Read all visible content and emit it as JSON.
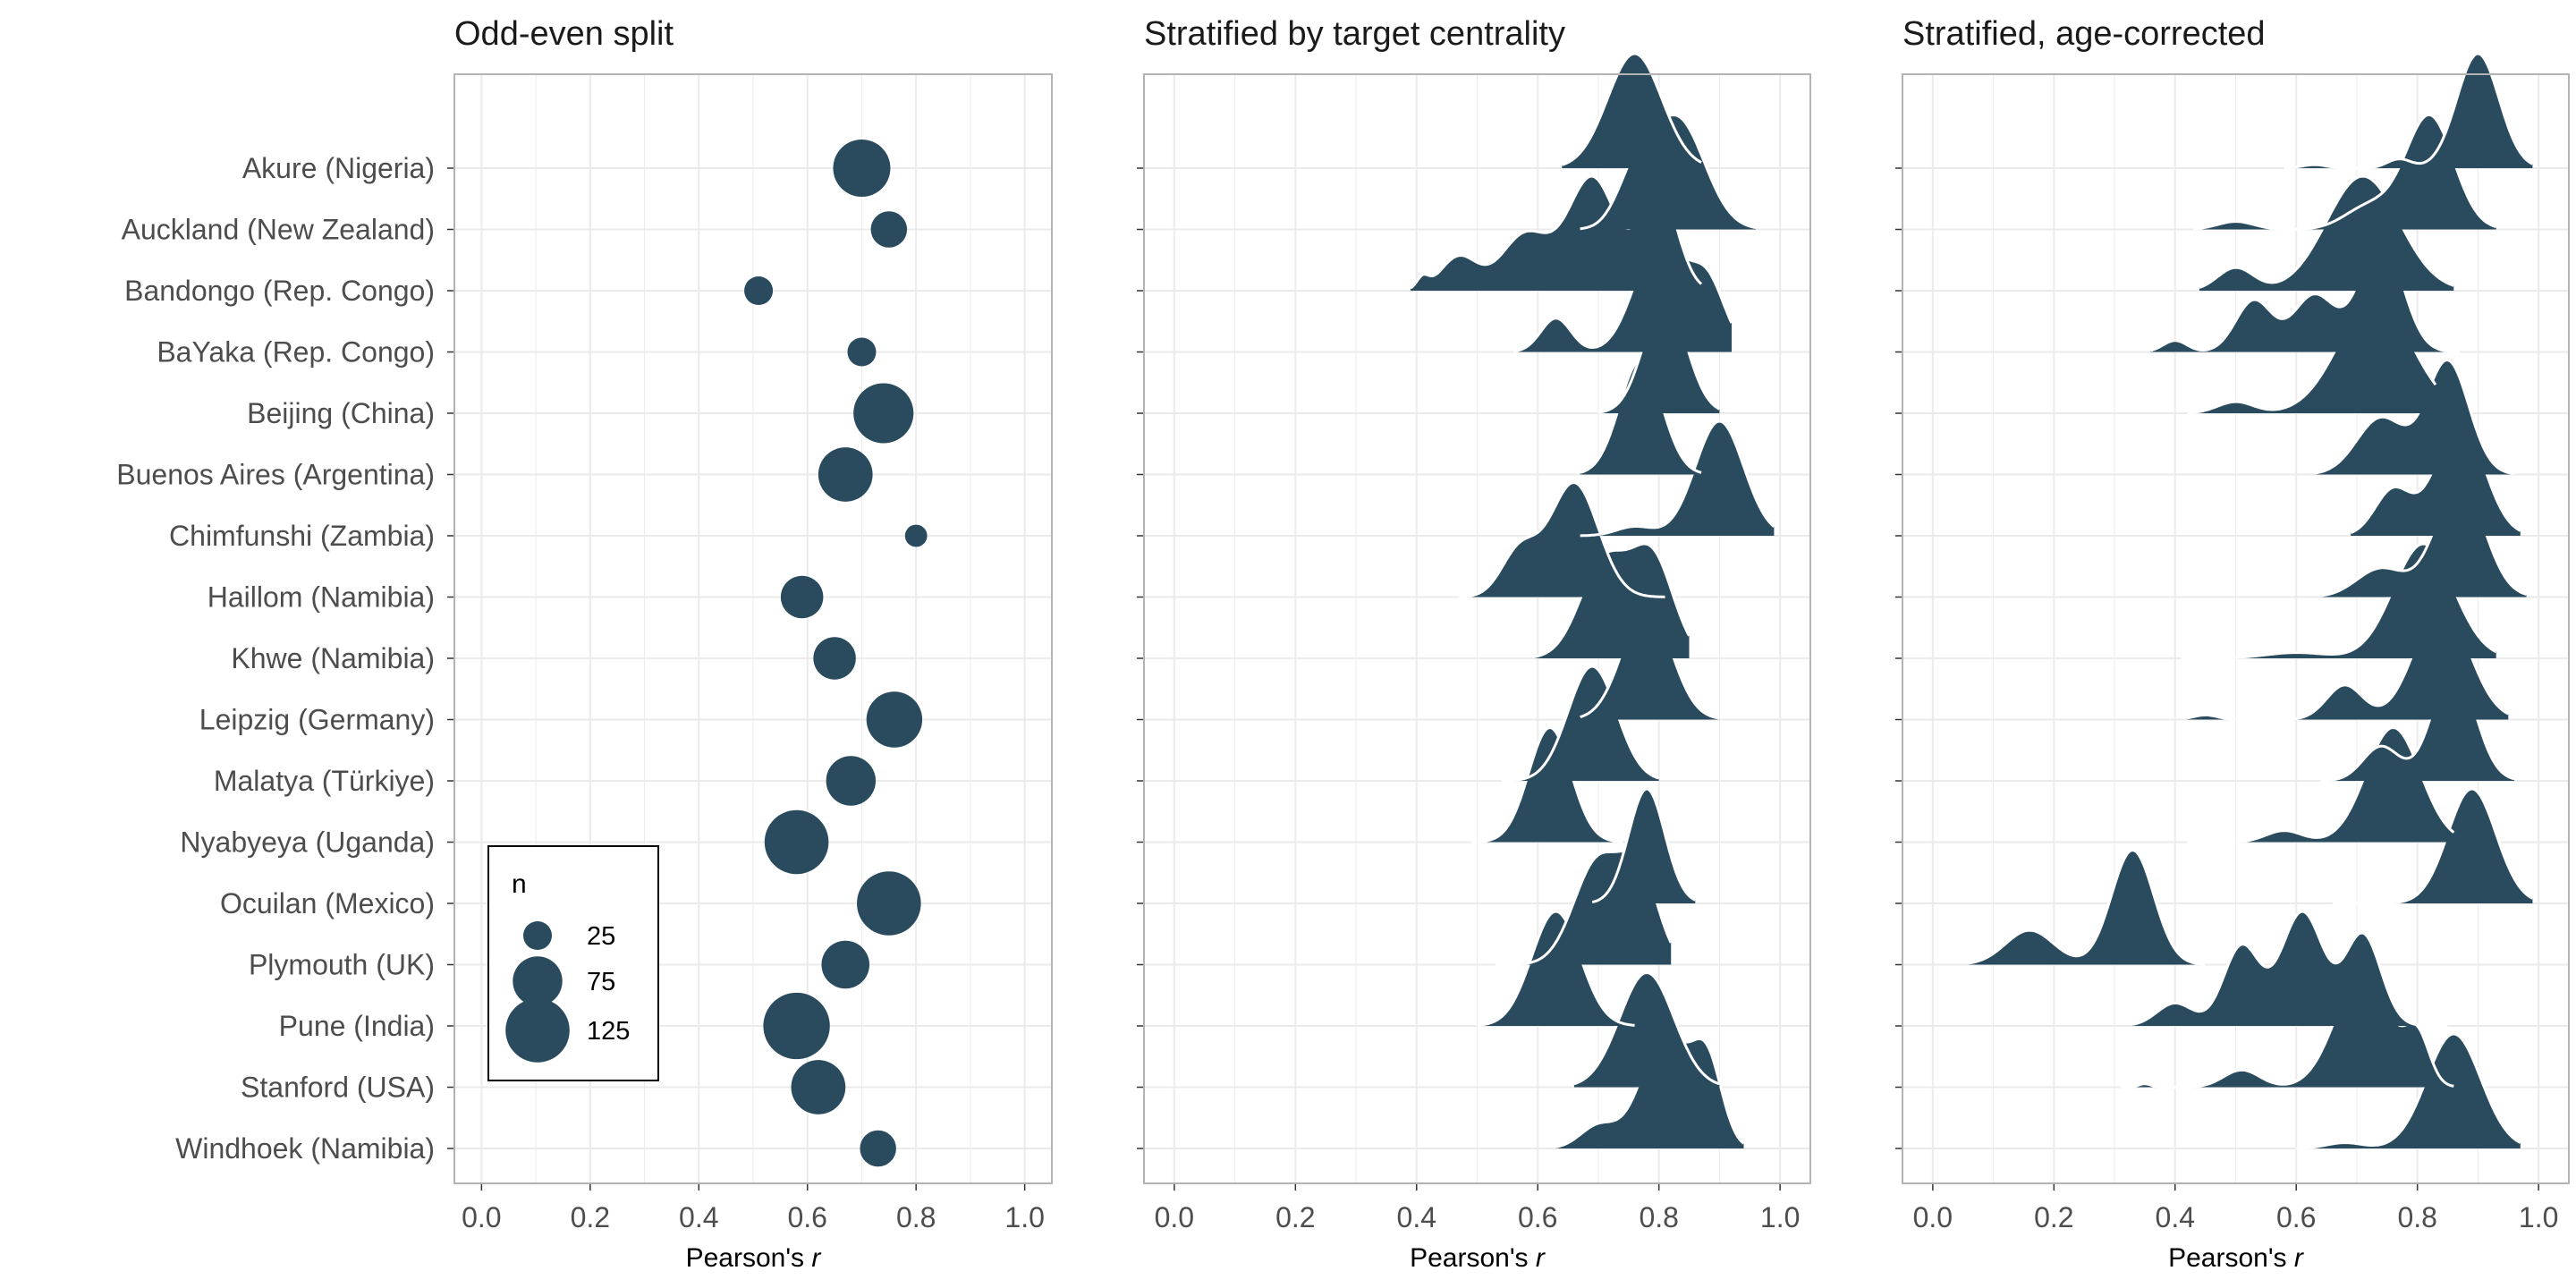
{
  "chart_data": [
    {
      "type": "scatter",
      "title": "Odd-even split",
      "xlabel": "Pearson's r",
      "xlim": [
        -0.05,
        1.05
      ],
      "xticks": [
        0.0,
        0.2,
        0.4,
        0.6,
        0.8,
        1.0
      ],
      "xtick_labels": [
        "0.0",
        "0.2",
        "0.4",
        "0.6",
        "0.8",
        "1.0"
      ],
      "grid": true,
      "categories": [
        "Akure (Nigeria)",
        "Auckland (New Zealand)",
        "Bandongo (Rep. Congo)",
        "BaYaka (Rep. Congo)",
        "Beijing (China)",
        "Buenos Aires (Argentina)",
        "Chimfunshi (Zambia)",
        "Haillom (Namibia)",
        "Khwe (Namibia)",
        "Leipzig (Germany)",
        "Malatya (Türkiye)",
        "Nyabyeya (Uganda)",
        "Ocuilan (Mexico)",
        "Plymouth (UK)",
        "Pune (India)",
        "Stanford (USA)",
        "Windhoek (Namibia)"
      ],
      "points": [
        {
          "r": 0.7,
          "n": 100
        },
        {
          "r": 0.75,
          "n": 40
        },
        {
          "r": 0.51,
          "n": 25
        },
        {
          "r": 0.7,
          "n": 25
        },
        {
          "r": 0.74,
          "n": 110
        },
        {
          "r": 0.67,
          "n": 90
        },
        {
          "r": 0.8,
          "n": 15
        },
        {
          "r": 0.59,
          "n": 55
        },
        {
          "r": 0.65,
          "n": 55
        },
        {
          "r": 0.76,
          "n": 95
        },
        {
          "r": 0.68,
          "n": 75
        },
        {
          "r": 0.58,
          "n": 125
        },
        {
          "r": 0.75,
          "n": 125
        },
        {
          "r": 0.67,
          "n": 70
        },
        {
          "r": 0.58,
          "n": 135
        },
        {
          "r": 0.62,
          "n": 90
        },
        {
          "r": 0.73,
          "n": 40
        }
      ],
      "legend": {
        "title": "n",
        "entries": [
          {
            "label": "25",
            "n": 25
          },
          {
            "label": "75",
            "n": 75
          },
          {
            "label": "125",
            "n": 125
          }
        ],
        "placement": "bottom-left"
      },
      "color": "#2a4a5e"
    },
    {
      "type": "area",
      "title": "Stratified by target centrality",
      "xlabel": "Pearson's r",
      "xlim": [
        -0.05,
        1.05
      ],
      "xticks": [
        0.0,
        0.2,
        0.4,
        0.6,
        0.8,
        1.0
      ],
      "xtick_labels": [
        "0.0",
        "0.2",
        "0.4",
        "0.6",
        "0.8",
        "1.0"
      ],
      "grid": true,
      "series": [
        {
          "components": [
            [
              0.76,
              0.045,
              1.0
            ]
          ],
          "range": [
            0.64,
            0.87
          ]
        },
        {
          "components": [
            [
              0.83,
              0.045,
              1.0
            ],
            [
              0.76,
              0.03,
              0.4
            ]
          ],
          "range": [
            0.67,
            0.96
          ]
        },
        {
          "components": [
            [
              0.69,
              0.04,
              1.0
            ],
            [
              0.8,
              0.03,
              0.9
            ],
            [
              0.58,
              0.04,
              0.5
            ],
            [
              0.47,
              0.03,
              0.3
            ],
            [
              0.41,
              0.01,
              0.1
            ]
          ],
          "range": [
            0.39,
            0.87
          ]
        },
        {
          "components": [
            [
              0.8,
              0.04,
              1.0
            ],
            [
              0.88,
              0.03,
              0.6
            ],
            [
              0.63,
              0.025,
              0.3
            ]
          ],
          "range": [
            0.56,
            0.92
          ]
        },
        {
          "components": [
            [
              0.81,
              0.035,
              1.0
            ]
          ],
          "range": [
            0.7,
            0.9
          ]
        },
        {
          "components": [
            [
              0.77,
              0.035,
              1.0
            ]
          ],
          "range": [
            0.67,
            0.87
          ]
        },
        {
          "components": [
            [
              0.9,
              0.04,
              1.0
            ],
            [
              0.76,
              0.03,
              0.08
            ]
          ],
          "range": [
            0.67,
            0.99
          ]
        },
        {
          "components": [
            [
              0.66,
              0.04,
              1.0
            ],
            [
              0.57,
              0.03,
              0.4
            ]
          ],
          "range": [
            0.47,
            0.81
          ]
        },
        {
          "components": [
            [
              0.71,
              0.04,
              1.0
            ],
            [
              0.79,
              0.035,
              1.0
            ]
          ],
          "range": [
            0.59,
            0.85
          ]
        },
        {
          "components": [
            [
              0.78,
              0.04,
              1.0
            ]
          ],
          "range": [
            0.67,
            0.9
          ]
        },
        {
          "components": [
            [
              0.69,
              0.04,
              1.0
            ]
          ],
          "range": [
            0.54,
            0.8
          ]
        },
        {
          "components": [
            [
              0.62,
              0.035,
              1.0
            ]
          ],
          "range": [
            0.49,
            0.74
          ]
        },
        {
          "components": [
            [
              0.78,
              0.03,
              1.0
            ]
          ],
          "range": [
            0.69,
            0.86
          ]
        },
        {
          "components": [
            [
              0.7,
              0.04,
              1.0
            ],
            [
              0.77,
              0.03,
              0.8
            ]
          ],
          "range": [
            0.53,
            0.82
          ]
        },
        {
          "components": [
            [
              0.63,
              0.04,
              1.0
            ]
          ],
          "range": [
            0.5,
            0.76
          ]
        },
        {
          "components": [
            [
              0.78,
              0.045,
              1.0
            ]
          ],
          "range": [
            0.66,
            0.9
          ]
        },
        {
          "components": [
            [
              0.81,
              0.04,
              1.0
            ],
            [
              0.88,
              0.025,
              0.7
            ],
            [
              0.7,
              0.03,
              0.2
            ]
          ],
          "range": [
            0.63,
            0.94
          ]
        }
      ],
      "color": "#2a4a5e"
    },
    {
      "type": "area",
      "title": "Stratified, age-corrected",
      "xlabel": "Pearson's r",
      "xlim": [
        -0.05,
        1.05
      ],
      "xticks": [
        0.0,
        0.2,
        0.4,
        0.6,
        0.8,
        1.0
      ],
      "xtick_labels": [
        "0.0",
        "0.2",
        "0.4",
        "0.6",
        "0.8",
        "1.0"
      ],
      "grid": true,
      "series": [
        {
          "components": [
            [
              0.9,
              0.035,
              1.0
            ],
            [
              0.77,
              0.02,
              0.08
            ],
            [
              0.63,
              0.02,
              0.03
            ]
          ],
          "range": [
            0.58,
            0.99
          ]
        },
        {
          "components": [
            [
              0.82,
              0.04,
              1.0
            ],
            [
              0.72,
              0.04,
              0.2
            ],
            [
              0.5,
              0.03,
              0.07
            ]
          ],
          "range": [
            0.43,
            0.93
          ]
        },
        {
          "components": [
            [
              0.71,
              0.06,
              1.0
            ],
            [
              0.5,
              0.03,
              0.2
            ]
          ],
          "range": [
            0.44,
            0.86
          ]
        },
        {
          "components": [
            [
              0.74,
              0.035,
              1.0
            ],
            [
              0.63,
              0.035,
              0.5
            ],
            [
              0.53,
              0.03,
              0.45
            ],
            [
              0.4,
              0.02,
              0.1
            ]
          ],
          "range": [
            0.36,
            0.87
          ]
        },
        {
          "components": [
            [
              0.73,
              0.06,
              1.0
            ],
            [
              0.5,
              0.03,
              0.1
            ]
          ],
          "range": [
            0.42,
            0.83
          ]
        },
        {
          "components": [
            [
              0.85,
              0.035,
              1.0
            ],
            [
              0.74,
              0.04,
              0.5
            ]
          ],
          "range": [
            0.63,
            0.96
          ]
        },
        {
          "components": [
            [
              0.87,
              0.04,
              1.0
            ],
            [
              0.76,
              0.03,
              0.4
            ]
          ],
          "range": [
            0.69,
            0.97
          ]
        },
        {
          "components": [
            [
              0.87,
              0.04,
              1.0
            ],
            [
              0.74,
              0.04,
              0.25
            ]
          ],
          "range": [
            0.64,
            0.98
          ]
        },
        {
          "components": [
            [
              0.81,
              0.05,
              1.0
            ],
            [
              0.6,
              0.05,
              0.05
            ]
          ],
          "range": [
            0.41,
            0.93
          ]
        },
        {
          "components": [
            [
              0.84,
              0.045,
              1.0
            ],
            [
              0.68,
              0.03,
              0.3
            ],
            [
              0.45,
              0.02,
              0.04
            ]
          ],
          "range": [
            0.42,
            0.95
          ]
        },
        {
          "components": [
            [
              0.86,
              0.035,
              1.0
            ],
            [
              0.74,
              0.03,
              0.3
            ]
          ],
          "range": [
            0.64,
            0.96
          ]
        },
        {
          "components": [
            [
              0.76,
              0.045,
              1.0
            ],
            [
              0.58,
              0.03,
              0.1
            ]
          ],
          "range": [
            0.42,
            0.86
          ]
        },
        {
          "components": [
            [
              0.89,
              0.04,
              1.0
            ]
          ],
          "range": [
            0.66,
            0.99
          ]
        },
        {
          "components": [
            [
              0.33,
              0.035,
              1.0
            ],
            [
              0.16,
              0.04,
              0.3
            ]
          ],
          "range": [
            0.06,
            0.45
          ]
        },
        {
          "components": [
            [
              0.61,
              0.035,
              1.0
            ],
            [
              0.71,
              0.03,
              0.8
            ],
            [
              0.51,
              0.03,
              0.7
            ],
            [
              0.4,
              0.03,
              0.2
            ]
          ],
          "range": [
            0.33,
            0.85
          ]
        },
        {
          "components": [
            [
              0.71,
              0.045,
              1.0
            ],
            [
              0.8,
              0.02,
              0.4
            ],
            [
              0.51,
              0.03,
              0.15
            ],
            [
              0.35,
              0.01,
              0.03
            ]
          ],
          "range": [
            0.31,
            0.86
          ]
        },
        {
          "components": [
            [
              0.86,
              0.045,
              1.0
            ],
            [
              0.68,
              0.03,
              0.05
            ]
          ],
          "range": [
            0.6,
            0.97
          ]
        }
      ],
      "color": "#2a4a5e"
    }
  ]
}
